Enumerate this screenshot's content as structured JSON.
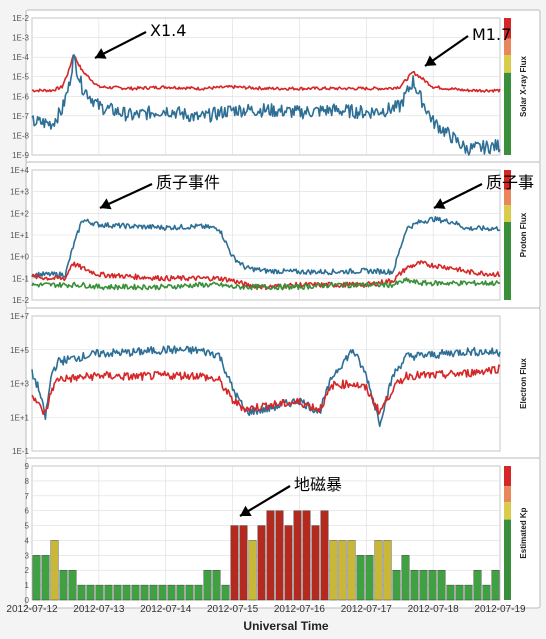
{
  "chart_data": [
    {
      "type": "line",
      "panel": "xray",
      "ylabel": "Solar X-ray Flux",
      "yscale": "log",
      "ylim": [
        1e-09,
        0.01
      ],
      "yticks": [
        "1E-9",
        "1E-8",
        "1E-7",
        "1E-6",
        "1E-5",
        "1E-4",
        "1E-3",
        "1E-2"
      ],
      "x": [
        12.0,
        12.3,
        12.45,
        12.55,
        12.62,
        12.75,
        13.0,
        13.5,
        14.0,
        14.5,
        15.0,
        15.5,
        16.0,
        16.5,
        17.0,
        17.3,
        17.5,
        17.7,
        17.8,
        18.0,
        18.5,
        19.0
      ],
      "series": [
        {
          "color": "#d62728",
          "values": [
            2e-06,
            2e-06,
            3e-06,
            2e-05,
            0.00014,
            2e-05,
            3e-06,
            2.5e-06,
            3e-06,
            2.5e-06,
            3e-06,
            2.5e-06,
            2.5e-06,
            2.5e-06,
            2.5e-06,
            2.5e-06,
            3e-06,
            1.7e-05,
            1e-05,
            3e-06,
            2e-06,
            2e-06
          ]
        },
        {
          "color": "#2e6f96",
          "values": [
            5e-08,
            4e-08,
            2e-07,
            3e-06,
            0.0001,
            3e-06,
            3e-07,
            1e-07,
            2e-07,
            8e-08,
            2e-07,
            2e-07,
            1.5e-07,
            2e-07,
            1.5e-07,
            2e-07,
            3e-07,
            6e-06,
            1e-06,
            5e-08,
            2e-09,
            3e-09
          ]
        }
      ],
      "annotations": [
        {
          "text": "X1.4",
          "x": 12.62,
          "y": 0.00014
        },
        {
          "text": "M1.7",
          "x": 17.7,
          "y": 1.7e-05
        }
      ],
      "scale_colors": [
        "#d62728",
        "#e8875b",
        "#d9cc4a",
        "#3a8f3a"
      ]
    },
    {
      "type": "line",
      "panel": "proton",
      "ylabel": "Proton Flux",
      "yscale": "log",
      "ylim": [
        0.01,
        10000
      ],
      "yticks": [
        "1E-2",
        "1E-1",
        "1E+0",
        "1E+1",
        "1E+2",
        "1E+3",
        "1E+4"
      ],
      "x": [
        12.0,
        12.3,
        12.5,
        12.6,
        12.75,
        13.0,
        13.5,
        14.0,
        14.5,
        14.8,
        15.0,
        15.2,
        15.5,
        16.0,
        16.5,
        17.0,
        17.4,
        17.6,
        17.8,
        18.0,
        18.3,
        18.5,
        19.0
      ],
      "series": [
        {
          "color": "#2e6f96",
          "values": [
            0.15,
            0.15,
            0.15,
            2,
            50,
            30,
            25,
            22,
            25,
            20,
            1,
            0.3,
            0.22,
            0.2,
            0.2,
            0.22,
            0.2,
            20,
            40,
            55,
            40,
            20,
            20
          ]
        },
        {
          "color": "#d62728",
          "values": [
            0.12,
            0.1,
            0.1,
            0.5,
            0.3,
            0.15,
            0.12,
            0.1,
            0.1,
            0.1,
            0.08,
            0.05,
            0.04,
            0.05,
            0.05,
            0.05,
            0.08,
            0.3,
            0.5,
            0.4,
            0.3,
            0.2,
            0.15
          ]
        },
        {
          "color": "#3a8f3a",
          "values": [
            0.05,
            0.05,
            0.05,
            0.05,
            0.05,
            0.04,
            0.04,
            0.04,
            0.05,
            0.05,
            0.04,
            0.04,
            0.04,
            0.04,
            0.05,
            0.05,
            0.05,
            0.08,
            0.06,
            0.06,
            0.06,
            0.06,
            0.06
          ]
        }
      ],
      "annotations": [
        {
          "text": "质子事件",
          "x": 12.8,
          "y": 50
        },
        {
          "text": "质子事",
          "x": 18.0,
          "y": 55
        }
      ],
      "scale_colors": [
        "#d62728",
        "#e8875b",
        "#d9cc4a",
        "#3a8f3a"
      ]
    },
    {
      "type": "line",
      "panel": "electron",
      "ylabel": "Electron Flux",
      "yscale": "log",
      "ylim": [
        0.1,
        10000000.0
      ],
      "yticks": [
        "1E-1",
        "1E+1",
        "1E+3",
        "1E+5",
        "1E+7"
      ],
      "x": [
        12.0,
        12.1,
        12.2,
        12.3,
        12.4,
        12.6,
        13.0,
        13.5,
        14.0,
        14.5,
        14.8,
        15.0,
        15.2,
        15.5,
        16.0,
        16.3,
        16.5,
        16.8,
        17.0,
        17.2,
        17.4,
        17.6,
        18.0,
        18.5,
        19.0
      ],
      "series": [
        {
          "color": "#2e6f96",
          "values": [
            4000,
            500,
            10,
            5000,
            20000,
            30000,
            60000,
            70000,
            100000,
            90000,
            50000,
            500,
            20,
            30,
            100,
            20,
            3000,
            100000.0,
            3000,
            5,
            3000,
            40000,
            50000,
            80000,
            70000
          ]
        },
        {
          "color": "#d62728",
          "values": [
            300,
            50,
            15,
            500,
            2000,
            2000,
            3000,
            2500,
            3000,
            3000,
            1500,
            100,
            30,
            50,
            80,
            30,
            800,
            1000,
            500,
            20,
            500,
            3000,
            3000,
            4000,
            8000
          ]
        }
      ],
      "scale_colors": []
    },
    {
      "type": "bar",
      "panel": "kp",
      "ylabel": "Estimated Kp",
      "ylim": [
        0,
        9
      ],
      "yticks": [
        "0",
        "1",
        "2",
        "3",
        "4",
        "5",
        "6",
        "7",
        "8",
        "9"
      ],
      "values": [
        3,
        3,
        4,
        2,
        2,
        1,
        1,
        1,
        1,
        1,
        1,
        1,
        1,
        1,
        1,
        1,
        1,
        1,
        1,
        2,
        2,
        1,
        5,
        5,
        4,
        5,
        6,
        6,
        5,
        6,
        6,
        5,
        6,
        4,
        4,
        4,
        3,
        3,
        4,
        4,
        2,
        3,
        2,
        2,
        2,
        2,
        1,
        1,
        1,
        2,
        1,
        2
      ],
      "xticks": [
        "2012-07-12",
        "2012-07-13",
        "2012-07-14",
        "2012-07-15",
        "2012-07-16",
        "2012-07-17",
        "2012-07-18",
        "2012-07-19"
      ],
      "xlabel": "Universal Time",
      "annotations": [
        {
          "text": "地磁暴",
          "x": 15.0,
          "y": 6
        }
      ],
      "scale_colors": [
        "#d62728",
        "#e8875b",
        "#d9cc4a",
        "#3a8f3a"
      ]
    }
  ]
}
